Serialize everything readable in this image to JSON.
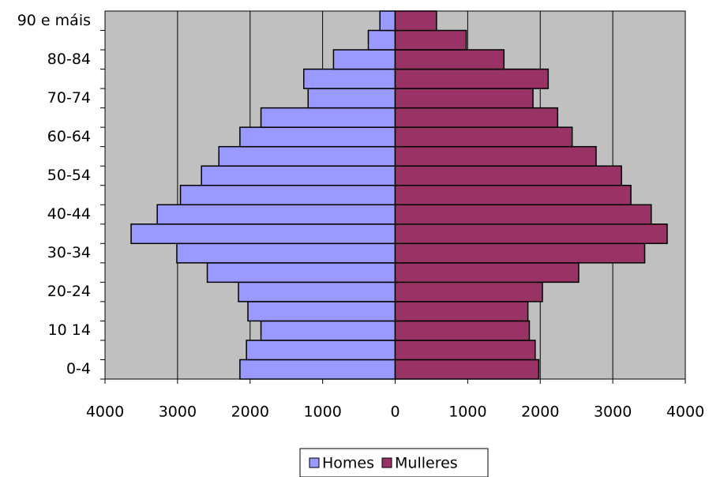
{
  "chart_data": {
    "type": "pyramid",
    "categories": [
      "0-4",
      null,
      "10 14",
      null,
      "20-24",
      null,
      "30-34",
      null,
      "40-44",
      null,
      "50-54",
      null,
      "60-64",
      null,
      "70-74",
      null,
      "80-84",
      null,
      "90 e máis"
    ],
    "series": [
      {
        "name": "Homes",
        "color": "#9999ff",
        "values": [
          -2140,
          -2050,
          -1850,
          -2030,
          -2160,
          -2590,
          -3010,
          -3640,
          -3280,
          -2960,
          -2670,
          -2430,
          -2140,
          -1850,
          -1200,
          -1260,
          -850,
          -370,
          -210
        ]
      },
      {
        "name": "Mulleres",
        "color": "#993366",
        "values": [
          1980,
          1930,
          1850,
          1830,
          2030,
          2530,
          3440,
          3750,
          3530,
          3250,
          3120,
          2770,
          2440,
          2240,
          1900,
          2110,
          1500,
          980,
          570
        ]
      }
    ],
    "xlim": [
      -4000,
      4000
    ],
    "xticks": [
      {
        "value": -4000,
        "label": "4000"
      },
      {
        "value": -3000,
        "label": "3000"
      },
      {
        "value": -2000,
        "label": "2000"
      },
      {
        "value": -1000,
        "label": "1000"
      },
      0,
      1000,
      2000,
      3000,
      4000
    ],
    "negative_tick_color": "#ff0000",
    "plot_background": "#c0c0c0",
    "grid": true,
    "legend": "bottom"
  }
}
